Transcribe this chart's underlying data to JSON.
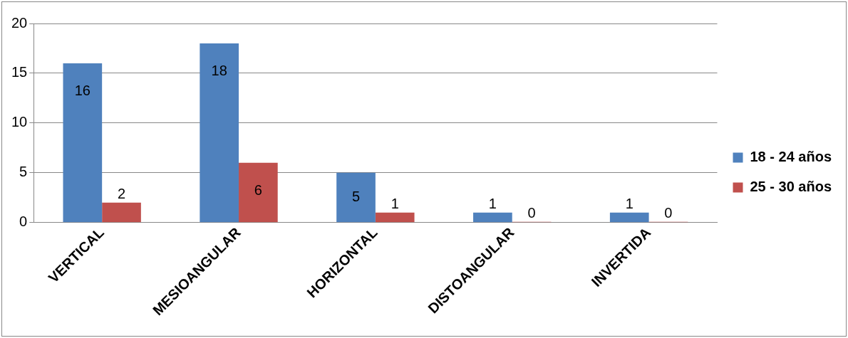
{
  "chart_data": {
    "type": "bar",
    "categories": [
      "VERTICAL",
      "MESIOANGULAR",
      "HORIZONTAL",
      "DISTOANGULAR",
      "INVERTIDA"
    ],
    "series": [
      {
        "name": "18 - 24 años",
        "color": "#4f81bd",
        "values": [
          16,
          18,
          5,
          1,
          1
        ]
      },
      {
        "name": "25 - 30 años",
        "color": "#c0504d",
        "values": [
          2,
          6,
          1,
          0,
          0
        ],
        "value_labels": [
          "2",
          "6",
          "1",
          "0",
          "0"
        ]
      }
    ],
    "ylim": [
      0,
      20
    ],
    "yticks": [
      0,
      5,
      10,
      15,
      20
    ],
    "grid": "y",
    "legend": "right",
    "data_labels": true
  }
}
